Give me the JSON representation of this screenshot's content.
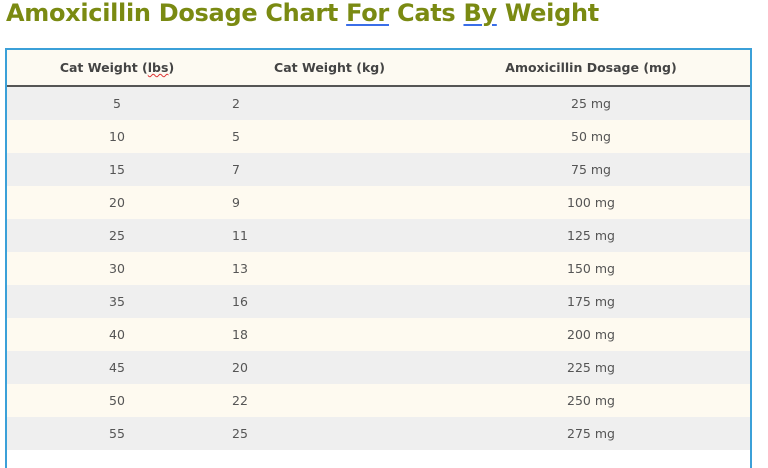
{
  "title": {
    "part1": "Amoxicillin Dosage Chart ",
    "link1": "For",
    "part2": " Cats ",
    "link2": "By",
    "part3": " Weight"
  },
  "colors": {
    "title": "#7a8a12",
    "frame_border": "#3ba0d8",
    "row_odd": "#efefef",
    "row_even": "#fefaf0",
    "header_bg": "#fdfaf2"
  },
  "table": {
    "headers": [
      "Cat Weight (lbs)",
      "Cat Weight (kg)",
      "Amoxicillin Dosage (mg)"
    ],
    "rows": [
      [
        "5",
        "2",
        "25 mg"
      ],
      [
        "10",
        "5",
        "50 mg"
      ],
      [
        "15",
        "7",
        "75 mg"
      ],
      [
        "20",
        "9",
        "100 mg"
      ],
      [
        "25",
        "11",
        "125 mg"
      ],
      [
        "30",
        "13",
        "150 mg"
      ],
      [
        "35",
        "16",
        "175 mg"
      ],
      [
        "40",
        "18",
        "200 mg"
      ],
      [
        "45",
        "20",
        "225 mg"
      ],
      [
        "50",
        "22",
        "250 mg"
      ],
      [
        "55",
        "25",
        "275 mg"
      ]
    ]
  }
}
